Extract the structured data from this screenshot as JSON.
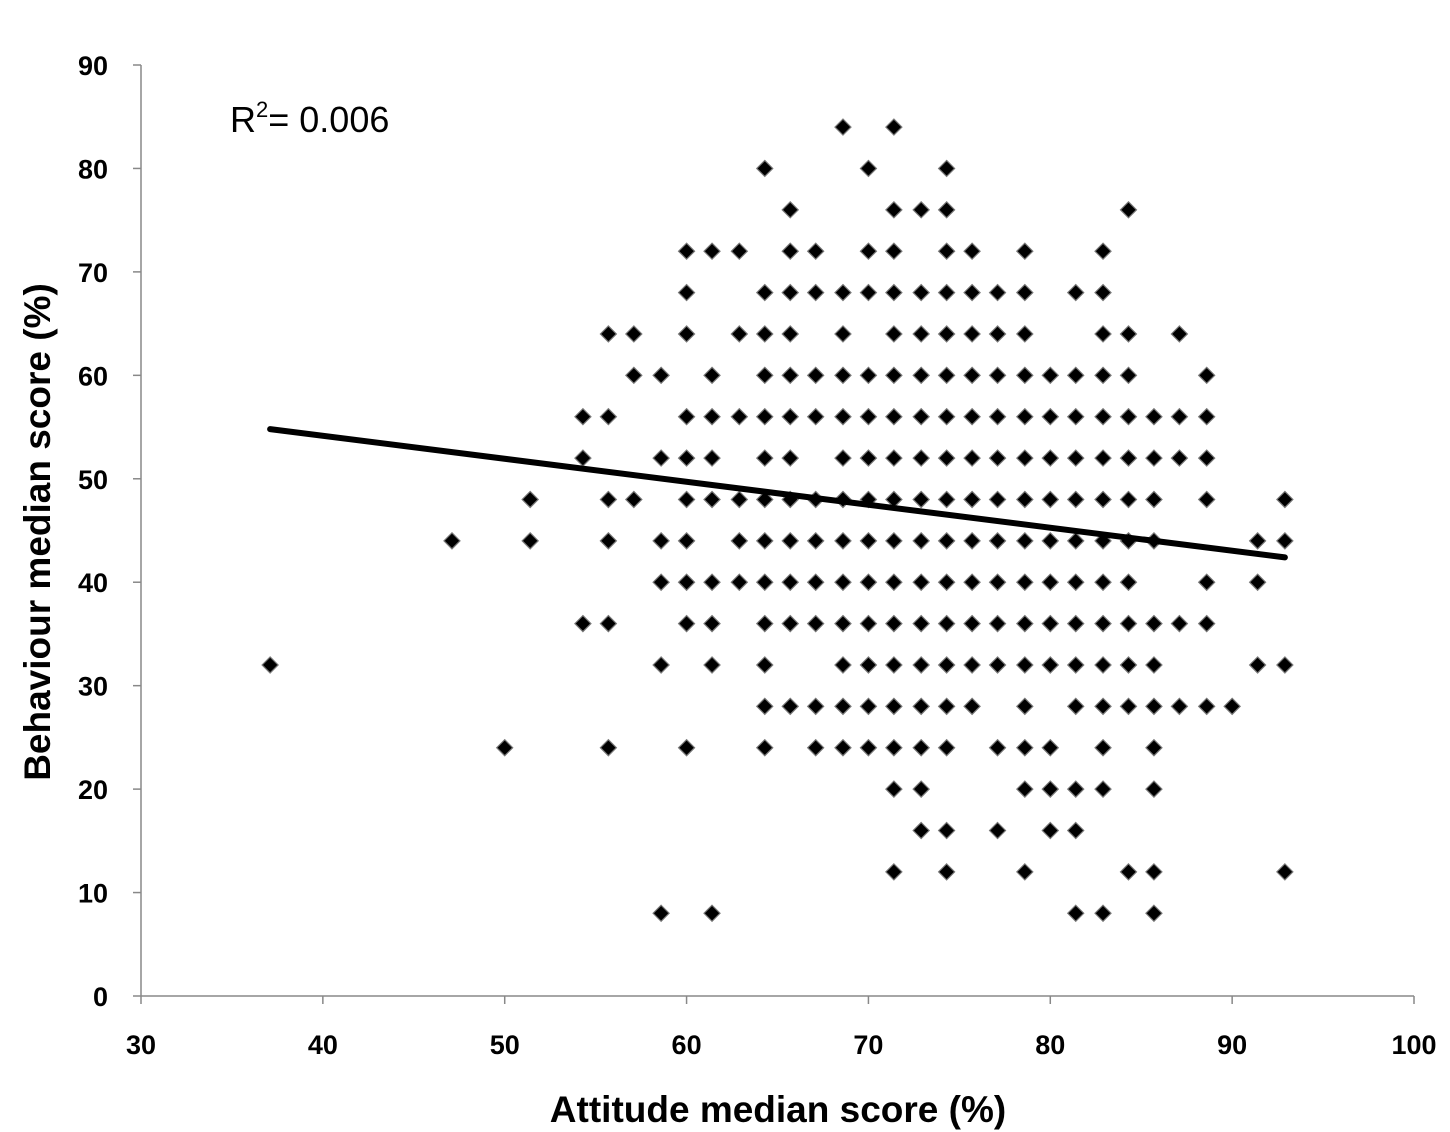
{
  "chart_data": {
    "type": "scatter",
    "xlabel": "Attitude median score (%)",
    "ylabel": "Behaviour median score (%)",
    "xlim": [
      30,
      100
    ],
    "ylim": [
      0,
      90
    ],
    "x_ticks": [
      "30",
      "40",
      "50",
      "60",
      "70",
      "80",
      "90",
      "100"
    ],
    "y_ticks": [
      "0",
      "10",
      "20",
      "30",
      "40",
      "50",
      "60",
      "70",
      "80",
      "90"
    ],
    "grid": false,
    "legend": "none",
    "annotation": {
      "prefix": "R",
      "sup": "2",
      "text": "= 0.006"
    },
    "trendline": {
      "x": [
        37.1,
        92.9
      ],
      "y": [
        54.8,
        42.4
      ]
    },
    "marker": "diamond",
    "marker_color": "#000000",
    "series": [
      {
        "points": [
          [
            37.1,
            32
          ],
          [
            47.1,
            44
          ],
          [
            50.0,
            24
          ],
          [
            51.4,
            48
          ],
          [
            51.4,
            44
          ],
          [
            54.3,
            56
          ],
          [
            54.3,
            52
          ],
          [
            54.3,
            36
          ],
          [
            55.7,
            64
          ],
          [
            55.7,
            56
          ],
          [
            55.7,
            48
          ],
          [
            55.7,
            44
          ],
          [
            55.7,
            36
          ],
          [
            55.7,
            24
          ],
          [
            57.1,
            64
          ],
          [
            57.1,
            60
          ],
          [
            57.1,
            48
          ],
          [
            58.6,
            60
          ],
          [
            58.6,
            52
          ],
          [
            58.6,
            44
          ],
          [
            58.6,
            40
          ],
          [
            58.6,
            32
          ],
          [
            58.6,
            8
          ],
          [
            60.0,
            72
          ],
          [
            60.0,
            68
          ],
          [
            60.0,
            64
          ],
          [
            60.0,
            56
          ],
          [
            60.0,
            52
          ],
          [
            60.0,
            48
          ],
          [
            60.0,
            44
          ],
          [
            60.0,
            40
          ],
          [
            60.0,
            36
          ],
          [
            60.0,
            24
          ],
          [
            61.4,
            72
          ],
          [
            61.4,
            60
          ],
          [
            61.4,
            56
          ],
          [
            61.4,
            52
          ],
          [
            61.4,
            48
          ],
          [
            61.4,
            40
          ],
          [
            61.4,
            36
          ],
          [
            61.4,
            32
          ],
          [
            61.4,
            8
          ],
          [
            62.9,
            72
          ],
          [
            62.9,
            64
          ],
          [
            62.9,
            56
          ],
          [
            62.9,
            48
          ],
          [
            62.9,
            44
          ],
          [
            62.9,
            40
          ],
          [
            64.3,
            80
          ],
          [
            64.3,
            68
          ],
          [
            64.3,
            64
          ],
          [
            64.3,
            60
          ],
          [
            64.3,
            56
          ],
          [
            64.3,
            52
          ],
          [
            64.3,
            48
          ],
          [
            64.3,
            44
          ],
          [
            64.3,
            40
          ],
          [
            64.3,
            36
          ],
          [
            64.3,
            32
          ],
          [
            64.3,
            28
          ],
          [
            64.3,
            24
          ],
          [
            65.7,
            76
          ],
          [
            65.7,
            72
          ],
          [
            65.7,
            68
          ],
          [
            65.7,
            64
          ],
          [
            65.7,
            60
          ],
          [
            65.7,
            56
          ],
          [
            65.7,
            52
          ],
          [
            65.7,
            48
          ],
          [
            65.7,
            44
          ],
          [
            65.7,
            40
          ],
          [
            65.7,
            36
          ],
          [
            65.7,
            28
          ],
          [
            67.1,
            72
          ],
          [
            67.1,
            68
          ],
          [
            67.1,
            60
          ],
          [
            67.1,
            56
          ],
          [
            67.1,
            48
          ],
          [
            67.1,
            44
          ],
          [
            67.1,
            40
          ],
          [
            67.1,
            36
          ],
          [
            67.1,
            28
          ],
          [
            67.1,
            24
          ],
          [
            68.6,
            84
          ],
          [
            68.6,
            68
          ],
          [
            68.6,
            64
          ],
          [
            68.6,
            60
          ],
          [
            68.6,
            56
          ],
          [
            68.6,
            52
          ],
          [
            68.6,
            48
          ],
          [
            68.6,
            44
          ],
          [
            68.6,
            40
          ],
          [
            68.6,
            36
          ],
          [
            68.6,
            32
          ],
          [
            68.6,
            28
          ],
          [
            68.6,
            24
          ],
          [
            70.0,
            80
          ],
          [
            70.0,
            72
          ],
          [
            70.0,
            68
          ],
          [
            70.0,
            60
          ],
          [
            70.0,
            56
          ],
          [
            70.0,
            52
          ],
          [
            70.0,
            48
          ],
          [
            70.0,
            44
          ],
          [
            70.0,
            40
          ],
          [
            70.0,
            36
          ],
          [
            70.0,
            32
          ],
          [
            70.0,
            28
          ],
          [
            70.0,
            24
          ],
          [
            71.4,
            84
          ],
          [
            71.4,
            76
          ],
          [
            71.4,
            72
          ],
          [
            71.4,
            68
          ],
          [
            71.4,
            64
          ],
          [
            71.4,
            60
          ],
          [
            71.4,
            56
          ],
          [
            71.4,
            52
          ],
          [
            71.4,
            48
          ],
          [
            71.4,
            44
          ],
          [
            71.4,
            40
          ],
          [
            71.4,
            36
          ],
          [
            71.4,
            32
          ],
          [
            71.4,
            28
          ],
          [
            71.4,
            24
          ],
          [
            71.4,
            20
          ],
          [
            71.4,
            12
          ],
          [
            72.9,
            76
          ],
          [
            72.9,
            68
          ],
          [
            72.9,
            64
          ],
          [
            72.9,
            60
          ],
          [
            72.9,
            56
          ],
          [
            72.9,
            52
          ],
          [
            72.9,
            48
          ],
          [
            72.9,
            44
          ],
          [
            72.9,
            40
          ],
          [
            72.9,
            36
          ],
          [
            72.9,
            32
          ],
          [
            72.9,
            28
          ],
          [
            72.9,
            24
          ],
          [
            72.9,
            20
          ],
          [
            72.9,
            16
          ],
          [
            74.3,
            80
          ],
          [
            74.3,
            76
          ],
          [
            74.3,
            72
          ],
          [
            74.3,
            68
          ],
          [
            74.3,
            64
          ],
          [
            74.3,
            60
          ],
          [
            74.3,
            56
          ],
          [
            74.3,
            52
          ],
          [
            74.3,
            48
          ],
          [
            74.3,
            44
          ],
          [
            74.3,
            40
          ],
          [
            74.3,
            36
          ],
          [
            74.3,
            32
          ],
          [
            74.3,
            28
          ],
          [
            74.3,
            24
          ],
          [
            74.3,
            16
          ],
          [
            74.3,
            12
          ],
          [
            75.7,
            72
          ],
          [
            75.7,
            68
          ],
          [
            75.7,
            64
          ],
          [
            75.7,
            60
          ],
          [
            75.7,
            56
          ],
          [
            75.7,
            52
          ],
          [
            75.7,
            48
          ],
          [
            75.7,
            44
          ],
          [
            75.7,
            40
          ],
          [
            75.7,
            36
          ],
          [
            75.7,
            32
          ],
          [
            75.7,
            28
          ],
          [
            77.1,
            68
          ],
          [
            77.1,
            64
          ],
          [
            77.1,
            60
          ],
          [
            77.1,
            56
          ],
          [
            77.1,
            52
          ],
          [
            77.1,
            48
          ],
          [
            77.1,
            44
          ],
          [
            77.1,
            40
          ],
          [
            77.1,
            36
          ],
          [
            77.1,
            32
          ],
          [
            77.1,
            24
          ],
          [
            77.1,
            16
          ],
          [
            78.6,
            72
          ],
          [
            78.6,
            68
          ],
          [
            78.6,
            64
          ],
          [
            78.6,
            60
          ],
          [
            78.6,
            56
          ],
          [
            78.6,
            52
          ],
          [
            78.6,
            48
          ],
          [
            78.6,
            44
          ],
          [
            78.6,
            40
          ],
          [
            78.6,
            36
          ],
          [
            78.6,
            32
          ],
          [
            78.6,
            28
          ],
          [
            78.6,
            24
          ],
          [
            78.6,
            20
          ],
          [
            78.6,
            12
          ],
          [
            80.0,
            60
          ],
          [
            80.0,
            56
          ],
          [
            80.0,
            52
          ],
          [
            80.0,
            48
          ],
          [
            80.0,
            44
          ],
          [
            80.0,
            40
          ],
          [
            80.0,
            36
          ],
          [
            80.0,
            32
          ],
          [
            80.0,
            24
          ],
          [
            80.0,
            20
          ],
          [
            80.0,
            16
          ],
          [
            81.4,
            68
          ],
          [
            81.4,
            60
          ],
          [
            81.4,
            56
          ],
          [
            81.4,
            52
          ],
          [
            81.4,
            48
          ],
          [
            81.4,
            44
          ],
          [
            81.4,
            40
          ],
          [
            81.4,
            36
          ],
          [
            81.4,
            32
          ],
          [
            81.4,
            28
          ],
          [
            81.4,
            20
          ],
          [
            81.4,
            16
          ],
          [
            81.4,
            8
          ],
          [
            82.9,
            72
          ],
          [
            82.9,
            68
          ],
          [
            82.9,
            64
          ],
          [
            82.9,
            60
          ],
          [
            82.9,
            56
          ],
          [
            82.9,
            52
          ],
          [
            82.9,
            48
          ],
          [
            82.9,
            44
          ],
          [
            82.9,
            40
          ],
          [
            82.9,
            36
          ],
          [
            82.9,
            32
          ],
          [
            82.9,
            28
          ],
          [
            82.9,
            24
          ],
          [
            82.9,
            20
          ],
          [
            82.9,
            8
          ],
          [
            84.3,
            76
          ],
          [
            84.3,
            64
          ],
          [
            84.3,
            60
          ],
          [
            84.3,
            56
          ],
          [
            84.3,
            52
          ],
          [
            84.3,
            48
          ],
          [
            84.3,
            44
          ],
          [
            84.3,
            40
          ],
          [
            84.3,
            36
          ],
          [
            84.3,
            32
          ],
          [
            84.3,
            28
          ],
          [
            84.3,
            12
          ],
          [
            85.7,
            56
          ],
          [
            85.7,
            52
          ],
          [
            85.7,
            48
          ],
          [
            85.7,
            44
          ],
          [
            85.7,
            36
          ],
          [
            85.7,
            32
          ],
          [
            85.7,
            28
          ],
          [
            85.7,
            24
          ],
          [
            85.7,
            20
          ],
          [
            85.7,
            12
          ],
          [
            85.7,
            8
          ],
          [
            87.1,
            64
          ],
          [
            87.1,
            56
          ],
          [
            87.1,
            52
          ],
          [
            87.1,
            36
          ],
          [
            87.1,
            28
          ],
          [
            88.6,
            60
          ],
          [
            88.6,
            56
          ],
          [
            88.6,
            52
          ],
          [
            88.6,
            48
          ],
          [
            88.6,
            40
          ],
          [
            88.6,
            36
          ],
          [
            88.6,
            28
          ],
          [
            90.0,
            28
          ],
          [
            91.4,
            44
          ],
          [
            91.4,
            40
          ],
          [
            91.4,
            32
          ],
          [
            92.9,
            48
          ],
          [
            92.9,
            44
          ],
          [
            92.9,
            32
          ],
          [
            92.9,
            12
          ]
        ]
      }
    ]
  }
}
